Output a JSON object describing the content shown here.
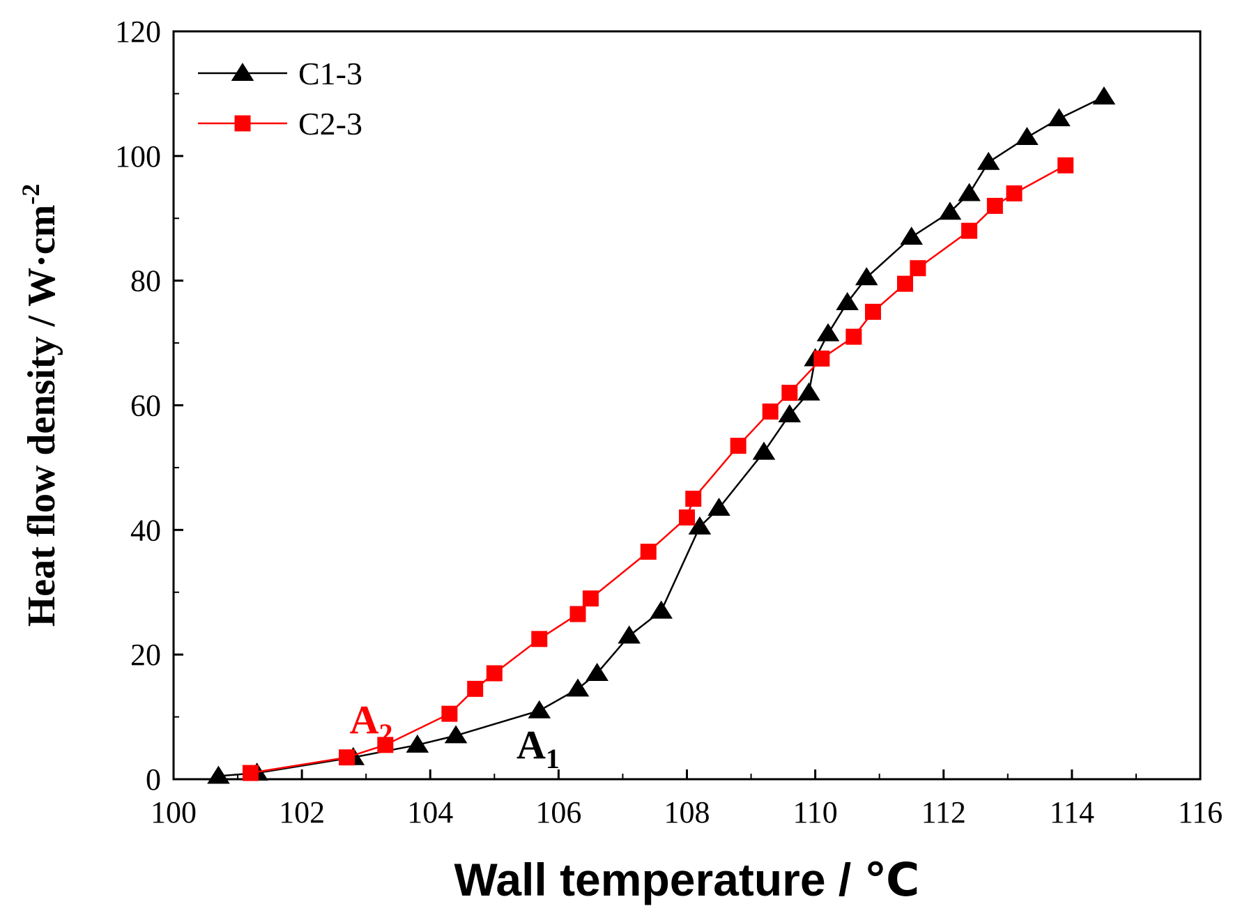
{
  "chart_data": {
    "type": "line",
    "title": "",
    "xlabel": "Wall temperature / ℃",
    "ylabel": "Heat flow density / W·cm",
    "ylabel_sup": "-2",
    "xlim": [
      100,
      116
    ],
    "ylim": [
      0,
      120
    ],
    "xticks": [
      100,
      102,
      104,
      106,
      108,
      110,
      112,
      114,
      116
    ],
    "yticks": [
      0,
      20,
      40,
      60,
      80,
      100,
      120
    ],
    "xtick_labels": [
      "100",
      "102",
      "104",
      "106",
      "108",
      "110",
      "112",
      "114",
      "116"
    ],
    "ytick_labels": [
      "0",
      "20",
      "40",
      "60",
      "80",
      "100",
      "120"
    ],
    "grid": false,
    "legend_position": "top-left",
    "series": [
      {
        "name": "C1-3",
        "color": "#000000",
        "marker": "triangle",
        "x": [
          100.7,
          101.3,
          102.8,
          103.8,
          104.4,
          105.7,
          106.3,
          106.6,
          107.1,
          107.6,
          108.2,
          108.5,
          109.2,
          109.6,
          109.9,
          110.0,
          110.2,
          110.5,
          110.8,
          111.5,
          112.1,
          112.4,
          112.7,
          113.3,
          113.8,
          114.5
        ],
        "y": [
          0.5,
          1.0,
          3.5,
          5.5,
          7.0,
          11.0,
          14.5,
          17.0,
          23.0,
          27.0,
          40.5,
          43.5,
          52.5,
          58.5,
          62.0,
          67.5,
          71.5,
          76.5,
          80.5,
          87.0,
          91.0,
          94.0,
          99.0,
          103.0,
          106.0,
          109.5
        ]
      },
      {
        "name": "C2-3",
        "color": "#ff0000",
        "marker": "square",
        "x": [
          101.2,
          102.7,
          103.3,
          104.3,
          104.7,
          105.0,
          105.7,
          106.3,
          106.5,
          107.4,
          108.0,
          108.1,
          108.8,
          109.3,
          109.6,
          110.1,
          110.6,
          110.9,
          111.4,
          111.6,
          112.4,
          112.8,
          113.1,
          113.9
        ],
        "y": [
          1.0,
          3.5,
          5.5,
          10.5,
          14.5,
          17.0,
          22.5,
          26.5,
          29.0,
          36.5,
          42.0,
          45.0,
          53.5,
          59.0,
          62.0,
          67.5,
          71.0,
          75.0,
          79.5,
          82.0,
          88.0,
          92.0,
          94.0,
          98.5
        ]
      }
    ],
    "annotations": [
      {
        "label": "A",
        "sub": "1",
        "x": 105.8,
        "y": 6.5,
        "color": "#000000"
      },
      {
        "label": "A",
        "sub": "2",
        "x": 103.2,
        "y": 10.5,
        "color": "#ff0000"
      }
    ]
  }
}
